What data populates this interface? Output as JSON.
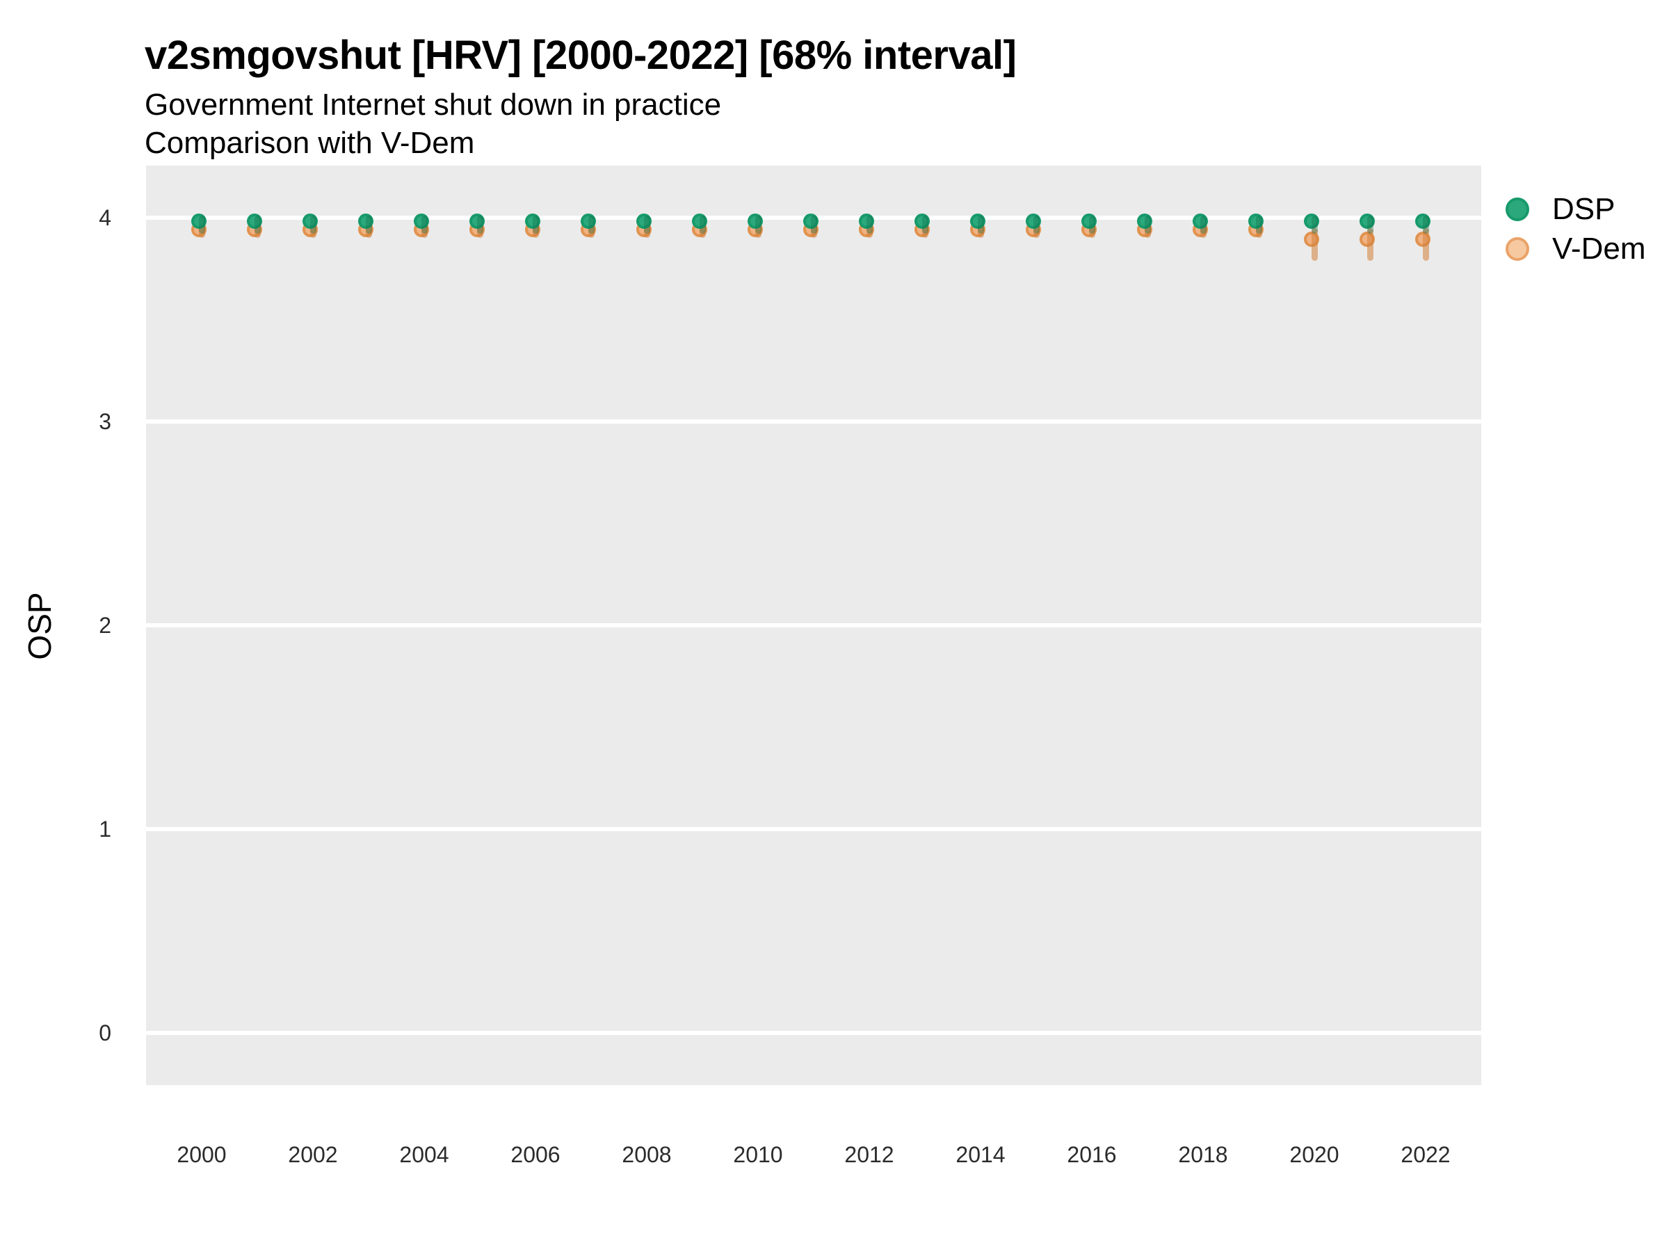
{
  "header": {
    "title": "v2smgovshut [HRV] [2000-2022] [68% interval]",
    "subtitle1": "Government Internet shut down in practice",
    "subtitle2": "Comparison with V-Dem"
  },
  "axes": {
    "y_label": "OSP",
    "y_ticks": [
      4,
      3,
      2,
      1,
      0
    ],
    "x_tick_labels": [
      2000,
      2002,
      2004,
      2006,
      2008,
      2010,
      2012,
      2014,
      2016,
      2018,
      2020,
      2022
    ]
  },
  "legend": {
    "position": "right",
    "items": [
      {
        "label": "DSP",
        "fill": "#2ba97d",
        "stroke": "#179a6b"
      },
      {
        "label": "V-Dem",
        "fill": "#f6c9a0",
        "stroke": "#eba369"
      }
    ]
  },
  "colors": {
    "plot_background": "#ebebeb",
    "gridline": "#ffffff",
    "dsp_fill": "#2ba97d",
    "dsp_stroke": "#179a6b",
    "dsp_interval": "rgba(13,110,72,0.35)",
    "vdem_fill": "#f1b283",
    "vdem_stroke": "#e1934f",
    "vdem_interval": "rgba(212,128,58,0.55)"
  },
  "chart_data": {
    "type": "scatter",
    "title": "v2smgovshut [HRV] [2000-2022] [68% interval]",
    "subtitle": [
      "Government Internet shut down in practice",
      "Comparison with V-Dem"
    ],
    "xlabel": "",
    "ylabel": "OSP",
    "interval_level": "68%",
    "grid": "major-y",
    "legend_position": "right",
    "xlim": [
      1999,
      2023
    ],
    "ylim": [
      -0.26,
      4.26
    ],
    "y_ticks": [
      0,
      1,
      2,
      3,
      4
    ],
    "x": [
      2000,
      2001,
      2002,
      2003,
      2004,
      2005,
      2006,
      2007,
      2008,
      2009,
      2010,
      2011,
      2012,
      2013,
      2014,
      2015,
      2016,
      2017,
      2018,
      2019,
      2020,
      2021,
      2022
    ],
    "series": [
      {
        "name": "DSP",
        "values": [
          3.97,
          3.97,
          3.97,
          3.97,
          3.97,
          3.97,
          3.97,
          3.97,
          3.97,
          3.97,
          3.97,
          3.97,
          3.97,
          3.97,
          3.97,
          3.97,
          3.97,
          3.97,
          3.97,
          3.97,
          3.97,
          3.97,
          3.97
        ],
        "lo": [
          3.92,
          3.92,
          3.92,
          3.92,
          3.92,
          3.92,
          3.92,
          3.92,
          3.92,
          3.92,
          3.92,
          3.92,
          3.92,
          3.92,
          3.92,
          3.92,
          3.92,
          3.92,
          3.92,
          3.92,
          3.92,
          3.92,
          3.92
        ],
        "hi": [
          4.01,
          4.01,
          4.01,
          4.01,
          4.01,
          4.01,
          4.01,
          4.01,
          4.01,
          4.01,
          4.01,
          4.01,
          4.01,
          4.01,
          4.01,
          4.01,
          4.01,
          4.01,
          4.01,
          4.01,
          4.01,
          4.01,
          4.01
        ]
      },
      {
        "name": "V-Dem",
        "values": [
          3.93,
          3.93,
          3.93,
          3.93,
          3.93,
          3.93,
          3.93,
          3.93,
          3.93,
          3.93,
          3.93,
          3.93,
          3.93,
          3.93,
          3.93,
          3.93,
          3.93,
          3.93,
          3.93,
          3.93,
          3.88,
          3.88,
          3.88
        ],
        "lo": [
          3.9,
          3.9,
          3.9,
          3.9,
          3.9,
          3.9,
          3.9,
          3.9,
          3.9,
          3.9,
          3.9,
          3.9,
          3.9,
          3.9,
          3.9,
          3.9,
          3.9,
          3.9,
          3.9,
          3.9,
          3.79,
          3.79,
          3.79
        ],
        "hi": [
          3.97,
          3.97,
          3.97,
          3.97,
          3.97,
          3.97,
          3.97,
          3.97,
          3.97,
          3.97,
          3.97,
          3.97,
          3.97,
          3.97,
          3.97,
          3.97,
          3.97,
          3.97,
          3.97,
          3.97,
          3.95,
          3.95,
          3.95
        ]
      }
    ]
  }
}
